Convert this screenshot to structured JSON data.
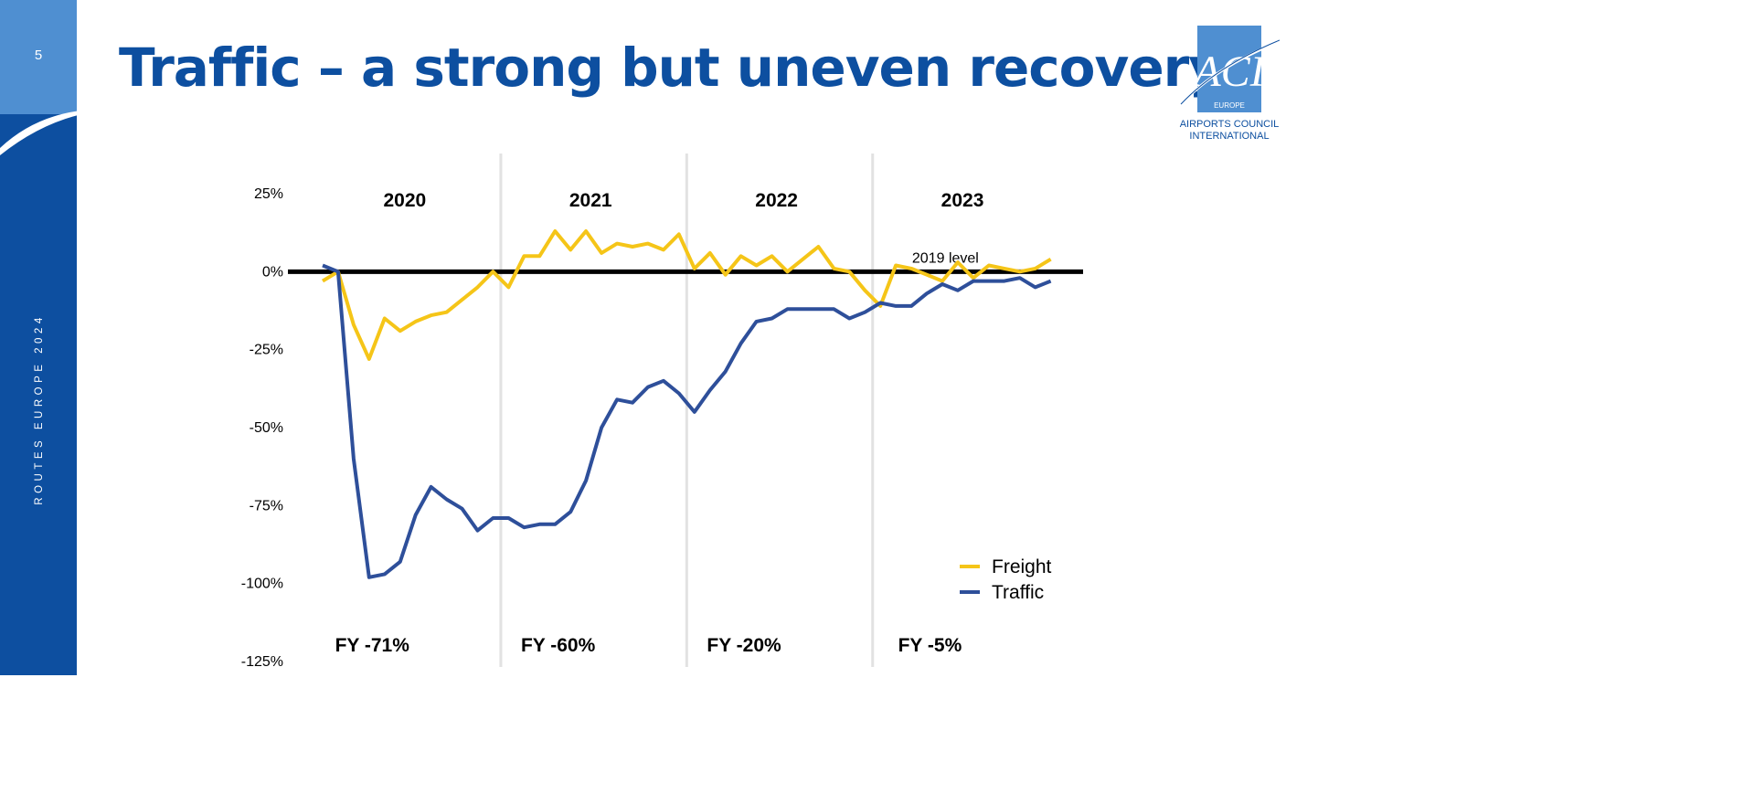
{
  "slide": {
    "number": "5",
    "side_text": "ROUTES EUROPE 2024",
    "title": "Traffic – a strong but uneven recovery",
    "colors": {
      "brand_dark": "#0d4fa0",
      "brand_light": "#4f8fd1"
    }
  },
  "logo": {
    "letters": "ACI",
    "sub": "EUROPE",
    "caption_line1": "AIRPORTS COUNCIL",
    "caption_line2": "INTERNATIONAL"
  },
  "chart_data": {
    "type": "line",
    "ylim": [
      -125,
      25
    ],
    "yticks": [
      "25%",
      "0%",
      "-25%",
      "-50%",
      "-75%",
      "-100%",
      "-125%"
    ],
    "ytick_values": [
      25,
      0,
      -25,
      -50,
      -75,
      -100,
      -125
    ],
    "x_range": [
      "2020-01",
      "2023-12"
    ],
    "year_labels": [
      "2020",
      "2021",
      "2022",
      "2023"
    ],
    "fy_labels": [
      "FY -71%",
      "FY -60%",
      "FY -20%",
      "FY -5%"
    ],
    "reference_line": {
      "value": 0,
      "label": "2019 level"
    },
    "legend": {
      "position": "bottom-right"
    },
    "series": [
      {
        "name": "Freight",
        "color": "#f5c518",
        "x": [
          "2020-01",
          "2020-02",
          "2020-03",
          "2020-04",
          "2020-05",
          "2020-06",
          "2020-07",
          "2020-08",
          "2020-09",
          "2020-10",
          "2020-11",
          "2020-12",
          "2021-01",
          "2021-02",
          "2021-03",
          "2021-04",
          "2021-05",
          "2021-06",
          "2021-07",
          "2021-08",
          "2021-09",
          "2021-10",
          "2021-11",
          "2021-12",
          "2022-01",
          "2022-02",
          "2022-03",
          "2022-04",
          "2022-05",
          "2022-06",
          "2022-07",
          "2022-08",
          "2022-09",
          "2022-10",
          "2022-11",
          "2022-12",
          "2023-01",
          "2023-02",
          "2023-03",
          "2023-04",
          "2023-05",
          "2023-06",
          "2023-07",
          "2023-08",
          "2023-09",
          "2023-10",
          "2023-11",
          "2023-12"
        ],
        "values": [
          -3,
          0,
          -17,
          -28,
          -15,
          -19,
          -16,
          -14,
          -13,
          -9,
          -5,
          0,
          -5,
          5,
          5,
          13,
          7,
          13,
          6,
          9,
          8,
          9,
          7,
          12,
          1,
          6,
          -1,
          5,
          2,
          5,
          0,
          4,
          8,
          1,
          0,
          -6,
          -11,
          2,
          1,
          -1,
          -3,
          3,
          -2,
          2,
          1,
          0,
          1,
          4
        ]
      },
      {
        "name": "Traffic",
        "color": "#2e4f9a",
        "x": [
          "2020-01",
          "2020-02",
          "2020-03",
          "2020-04",
          "2020-05",
          "2020-06",
          "2020-07",
          "2020-08",
          "2020-09",
          "2020-10",
          "2020-11",
          "2020-12",
          "2021-01",
          "2021-02",
          "2021-03",
          "2021-04",
          "2021-05",
          "2021-06",
          "2021-07",
          "2021-08",
          "2021-09",
          "2021-10",
          "2021-11",
          "2021-12",
          "2022-01",
          "2022-02",
          "2022-03",
          "2022-04",
          "2022-05",
          "2022-06",
          "2022-07",
          "2022-08",
          "2022-09",
          "2022-10",
          "2022-11",
          "2022-12",
          "2023-01",
          "2023-02",
          "2023-03",
          "2023-04",
          "2023-05",
          "2023-06",
          "2023-07",
          "2023-08",
          "2023-09",
          "2023-10",
          "2023-11",
          "2023-12"
        ],
        "values": [
          2,
          0,
          -60,
          -98,
          -97,
          -93,
          -78,
          -69,
          -73,
          -76,
          -83,
          -79,
          -79,
          -82,
          -81,
          -81,
          -77,
          -67,
          -50,
          -41,
          -42,
          -37,
          -35,
          -39,
          -45,
          -38,
          -32,
          -23,
          -16,
          -15,
          -12,
          -12,
          -12,
          -12,
          -15,
          -13,
          -10,
          -11,
          -11,
          -7,
          -4,
          -6,
          -3,
          -3,
          -3,
          -2,
          -5,
          -3
        ]
      }
    ]
  }
}
